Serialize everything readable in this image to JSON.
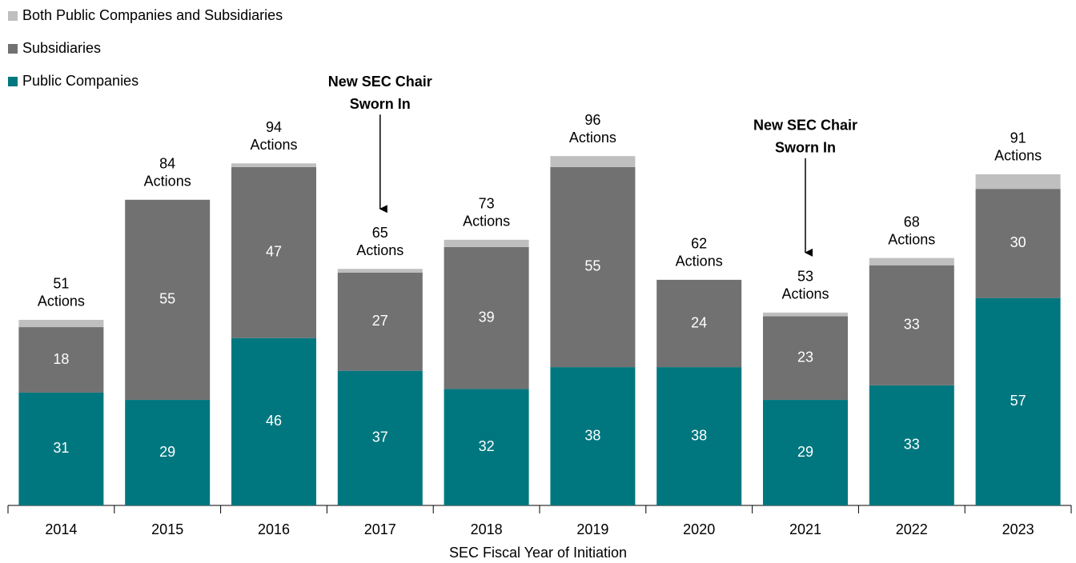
{
  "chart_data": {
    "type": "stacked_bar",
    "categories": [
      "2014",
      "2015",
      "2016",
      "2017",
      "2018",
      "2019",
      "2020",
      "2021",
      "2022",
      "2023"
    ],
    "series": [
      {
        "name": "Public Companies",
        "color": "#00777f",
        "values": [
          31,
          29,
          46,
          37,
          32,
          38,
          38,
          29,
          33,
          57
        ]
      },
      {
        "name": "Subsidiaries",
        "color": "#717171",
        "values": [
          18,
          55,
          47,
          27,
          39,
          55,
          24,
          23,
          33,
          30
        ]
      },
      {
        "name": "Both Public Companies and Subsidiaries",
        "color": "#bfbfbf",
        "values": [
          2,
          0,
          1,
          1,
          2,
          3,
          0,
          1,
          2,
          4
        ]
      }
    ],
    "totals": [
      51,
      84,
      94,
      65,
      73,
      96,
      62,
      53,
      68,
      91
    ],
    "total_unit": "Actions",
    "xlabel": "SEC Fiscal Year of Initiation",
    "ylim": [
      0,
      100
    ],
    "annotations": [
      {
        "category": "2017",
        "lines": [
          "New SEC Chair",
          "Sworn In"
        ]
      },
      {
        "category": "2021",
        "lines": [
          "New SEC Chair",
          "Sworn In"
        ]
      }
    ]
  }
}
